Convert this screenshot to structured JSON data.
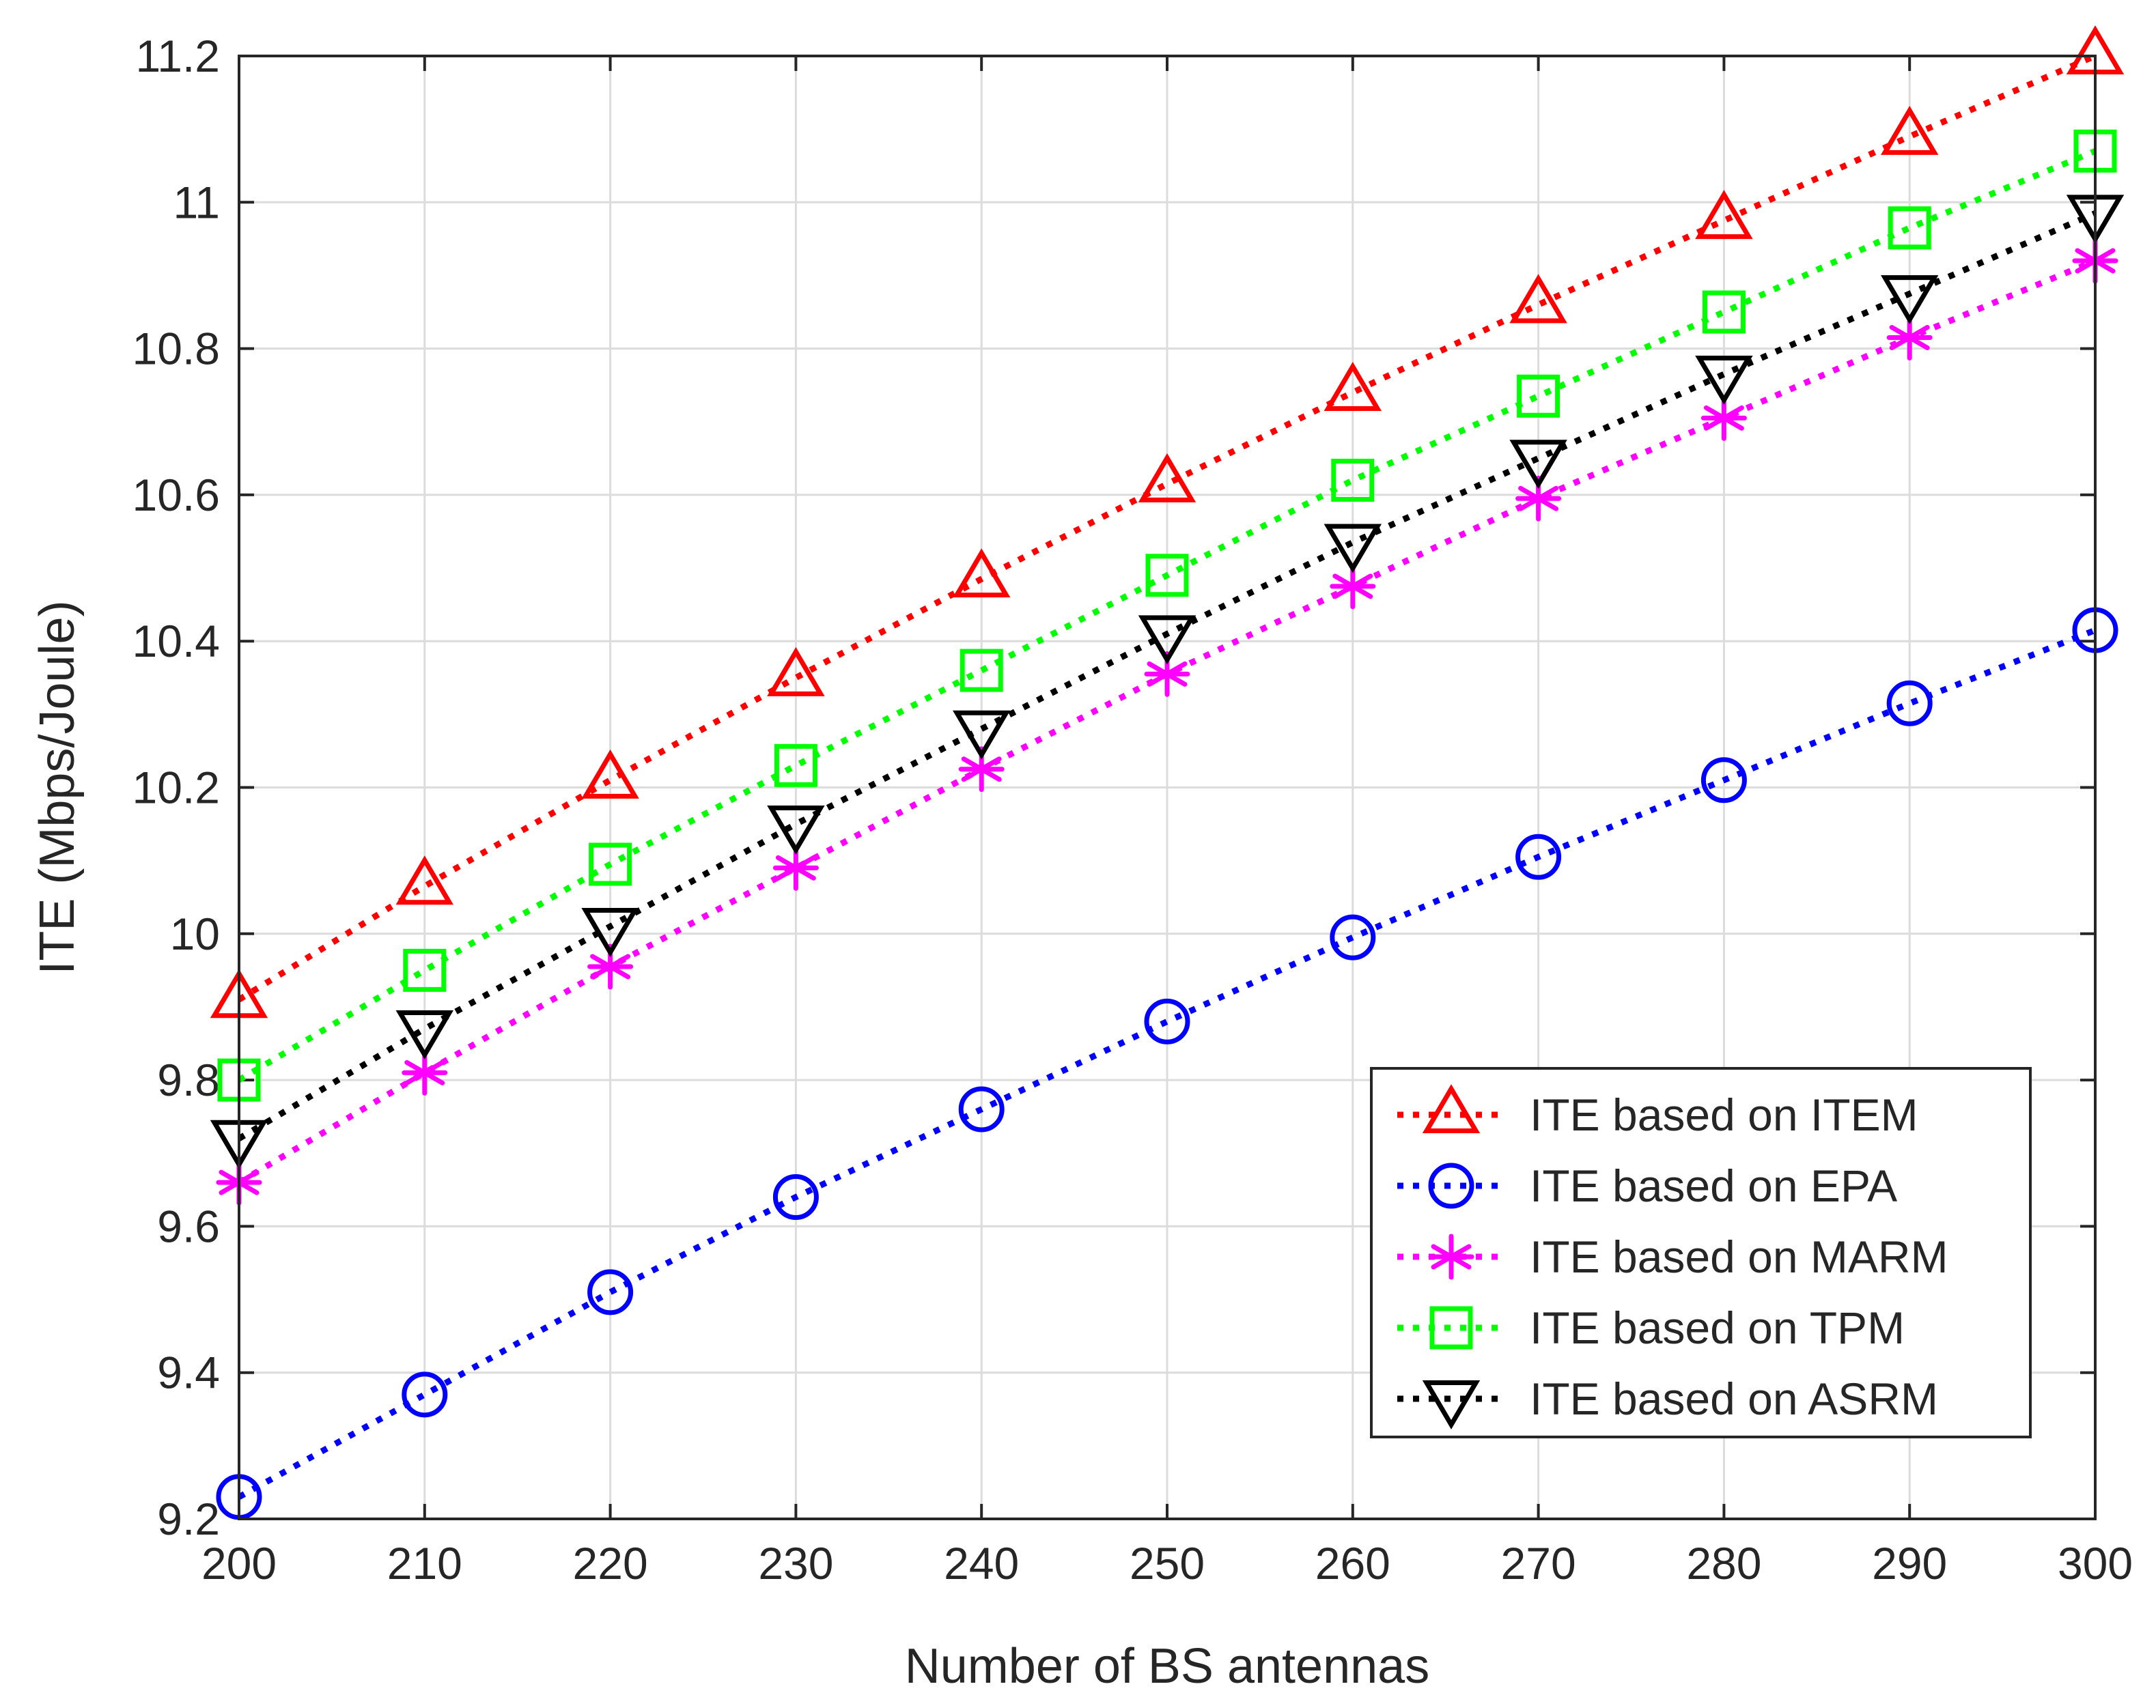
{
  "chart_data": {
    "type": "line",
    "title": "",
    "xlabel": "Number of BS antennas",
    "ylabel": "ITE (Mbps/Joule)",
    "xlim": [
      200,
      300
    ],
    "ylim": [
      9.2,
      11.2
    ],
    "xticks": [
      "200",
      "210",
      "220",
      "230",
      "240",
      "250",
      "260",
      "270",
      "280",
      "290",
      "300"
    ],
    "yticks": [
      "9.2",
      "9.4",
      "9.6",
      "9.8",
      "10",
      "10.2",
      "10.4",
      "10.6",
      "10.8",
      "11",
      "11.2"
    ],
    "grid": true,
    "legend_position": "lower-right",
    "x": [
      200,
      210,
      220,
      230,
      240,
      250,
      260,
      270,
      280,
      290,
      300
    ],
    "series": [
      {
        "name": "ITE based on ITEM",
        "color": "#ff0000",
        "marker": "triangle-up",
        "values": [
          9.91,
          10.065,
          10.21,
          10.35,
          10.485,
          10.615,
          10.74,
          10.86,
          10.975,
          11.09,
          11.2
        ]
      },
      {
        "name": "ITE based on EPA",
        "color": "#0000ff",
        "marker": "circle",
        "values": [
          9.23,
          9.37,
          9.51,
          9.64,
          9.76,
          9.88,
          9.995,
          10.105,
          10.21,
          10.315,
          10.415
        ]
      },
      {
        "name": "ITE based on MARM",
        "color": "#ff00ff",
        "marker": "asterisk",
        "values": [
          9.66,
          9.81,
          9.955,
          10.09,
          10.225,
          10.355,
          10.475,
          10.595,
          10.705,
          10.815,
          10.92
        ]
      },
      {
        "name": "ITE based on TPM",
        "color": "#00ff00",
        "marker": "square",
        "values": [
          9.8,
          9.95,
          10.095,
          10.23,
          10.36,
          10.49,
          10.62,
          10.735,
          10.85,
          10.965,
          11.07
        ]
      },
      {
        "name": "ITE based on ASRM",
        "color": "#000000",
        "marker": "triangle-down",
        "values": [
          9.72,
          9.87,
          10.01,
          10.15,
          10.28,
          10.41,
          10.535,
          10.65,
          10.765,
          10.875,
          10.985
        ]
      }
    ]
  }
}
